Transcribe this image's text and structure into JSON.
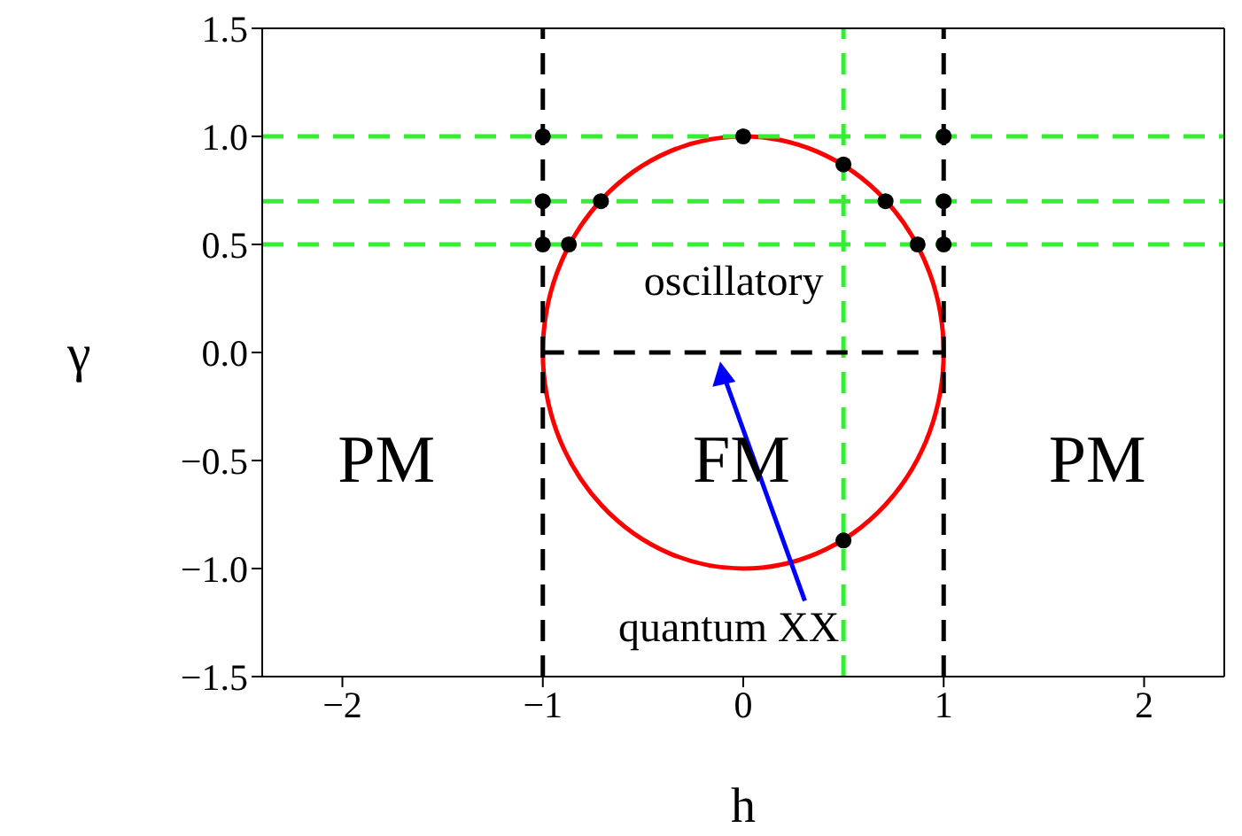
{
  "chart_data": {
    "type": "line",
    "xlabel": "h",
    "ylabel": "γ",
    "xlim": [
      -2.4,
      2.4
    ],
    "ylim": [
      -1.5,
      1.5
    ],
    "xticks": [
      {
        "value": -2,
        "label": "−2"
      },
      {
        "value": -1,
        "label": "−1"
      },
      0,
      1,
      2
    ],
    "yticks": [
      {
        "value": -1.5,
        "label": "−1.5"
      },
      {
        "value": -1,
        "label": "−1.0"
      },
      {
        "value": -0.5,
        "label": "−0.5"
      },
      {
        "value": 0,
        "label": "0.0"
      },
      {
        "value": 0.5,
        "label": "0.5"
      },
      {
        "value": 1,
        "label": "1.0"
      },
      {
        "value": 1.5,
        "label": "1.5"
      }
    ],
    "grid": false,
    "series": [
      {
        "color": "#000000",
        "line_style": "dashed",
        "x": [
          -1,
          1
        ],
        "values": [
          0,
          0
        ]
      },
      {
        "type": "scatter",
        "color": "#000000",
        "marker": "circle",
        "x": [
          -1,
          -1,
          -1,
          -0.87,
          -0.71,
          0,
          0.5,
          0.71,
          0.87,
          1,
          1,
          1,
          0.5
        ],
        "values": [
          1,
          0.7,
          0.5,
          0.5,
          0.7,
          1,
          0.87,
          0.7,
          0.5,
          1,
          0.7,
          0.5,
          -0.87
        ]
      }
    ],
    "ref_lines": [
      {
        "axis": "x",
        "value": -1,
        "color": "#000000",
        "line_style": "dashed"
      },
      {
        "axis": "x",
        "value": 1,
        "color": "#000000",
        "line_style": "dashed"
      },
      {
        "axis": "x",
        "value": 0.5,
        "color": "#33ee33",
        "line_style": "dashed"
      },
      {
        "axis": "y",
        "value": 1,
        "color": "#33ee33",
        "line_style": "dashed"
      },
      {
        "axis": "y",
        "value": 0.7,
        "color": "#33ee33",
        "line_style": "dashed"
      },
      {
        "axis": "y",
        "value": 0.5,
        "color": "#33ee33",
        "line_style": "dashed"
      }
    ],
    "annotations": [
      "PM",
      "FM",
      "PM",
      "oscillatory",
      "quantum XX"
    ]
  }
}
